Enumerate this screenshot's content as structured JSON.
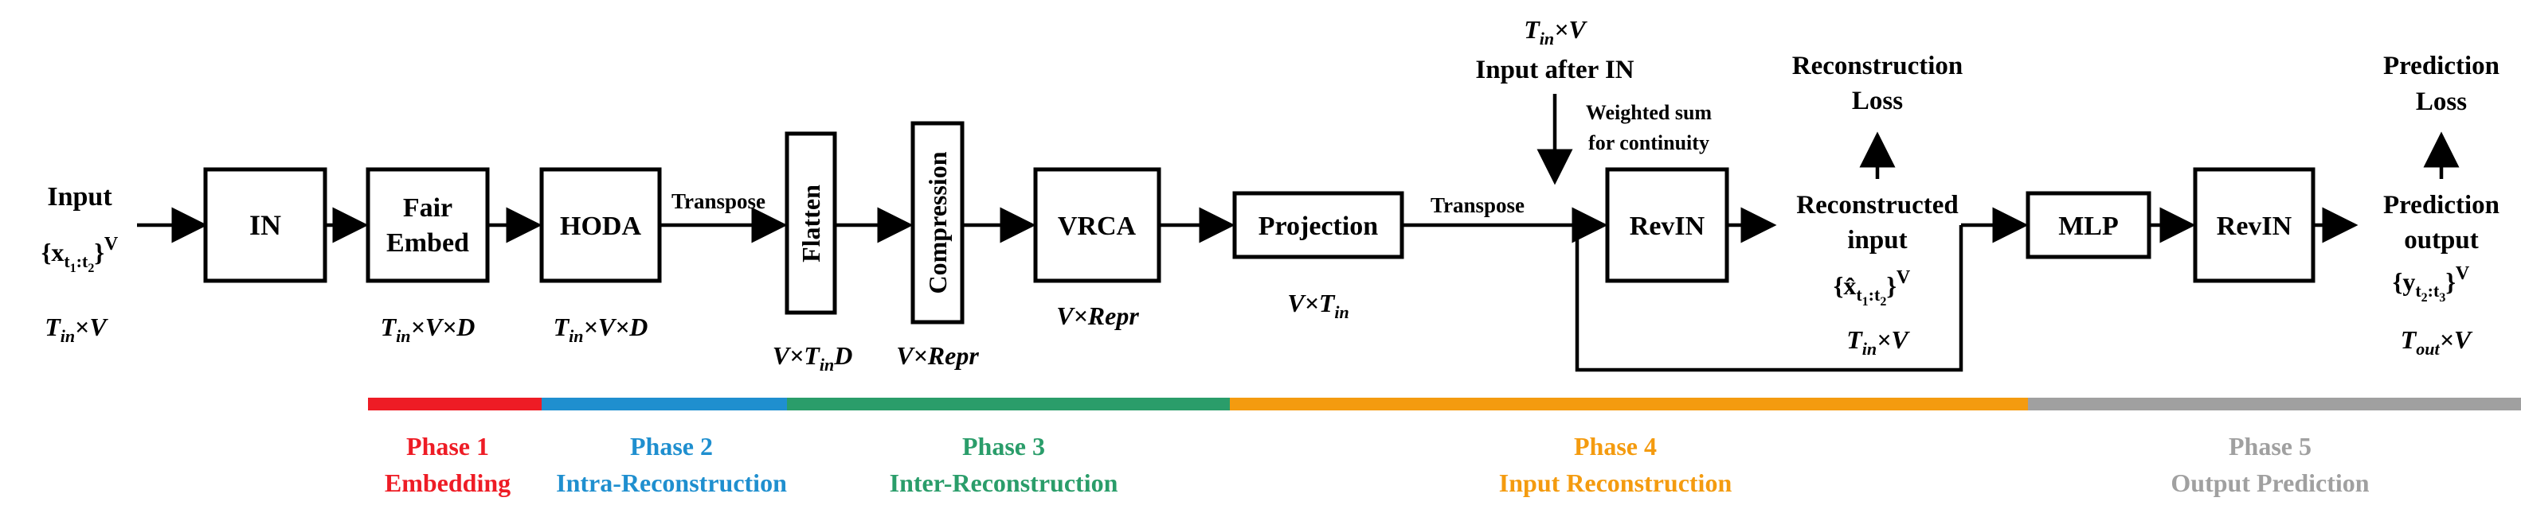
{
  "input": {
    "label": "Input",
    "formula": "{x",
    "formula_sub": "t",
    "formula_sub2": "1",
    "formula_colon": ":",
    "formula_sub3": "t",
    "formula_sub4": "2",
    "formula_close": "}",
    "formula_sup": "V",
    "dims": {
      "a": "T",
      "a_sub": "in",
      "times": "×",
      "b": "V"
    }
  },
  "blocks": {
    "in": "IN",
    "fair_embed_1": "Fair",
    "fair_embed_2": "Embed",
    "hoda": "HODA",
    "flatten": "Flatten",
    "compression": "Compression",
    "vrca": "VRCA",
    "projection": "Projection",
    "revin_1": "RevIN",
    "mlp": "MLP",
    "revin_2": "RevIN"
  },
  "edge_labels": {
    "transpose_1": "Transpose",
    "transpose_2": "Transpose",
    "weighted_1": "Weighted sum",
    "weighted_2": "for continuity"
  },
  "dims": {
    "fair_embed": {
      "a": "T",
      "a_sub": "in",
      "rest": "×V×D"
    },
    "hoda": {
      "a": "T",
      "a_sub": "in",
      "rest": "×V×D"
    },
    "flatten": {
      "a": "V×T",
      "a_sub": "in",
      "rest": "D"
    },
    "compression": "V×Repr",
    "vrca": "V×Repr",
    "projection": {
      "a": "V×T",
      "a_sub": "in"
    },
    "input_after_in_dims": {
      "a": "T",
      "a_sub": "in",
      "rest": "×V"
    },
    "reconstructed_dims": {
      "a": "T",
      "a_sub": "in",
      "rest": "×V"
    },
    "output_dims": {
      "a": "T",
      "a_sub": "out",
      "rest": "×V"
    }
  },
  "labels": {
    "input_after_in": "Input after IN",
    "reconstruction_loss_1": "Reconstruction",
    "reconstruction_loss_2": "Loss",
    "reconstructed_input_1": "Reconstructed",
    "reconstructed_input_2": "input",
    "reconstructed_formula": {
      "open": "{x̂",
      "s1": "t",
      "s2": "1",
      "c": ":",
      "s3": "t",
      "s4": "2",
      "close": "}",
      "sup": "V"
    },
    "prediction_loss_1": "Prediction",
    "prediction_loss_2": "Loss",
    "prediction_output_1": "Prediction",
    "prediction_output_2": "output",
    "prediction_formula": {
      "open": "{y",
      "s1": "t",
      "s2": "2",
      "c": ":",
      "s3": "t",
      "s4": "3",
      "close": "}",
      "sup": "V"
    }
  },
  "phases": [
    {
      "title": "Phase 1",
      "name": "Embedding",
      "color": "#ee1c25"
    },
    {
      "title": "Phase 2",
      "name": "Intra-Reconstruction",
      "color": "#1f8fcf"
    },
    {
      "title": "Phase 3",
      "name": "Inter-Reconstruction",
      "color": "#2a9d6a"
    },
    {
      "title": "Phase 4",
      "name": "Input Reconstruction",
      "color": "#f49b0f"
    },
    {
      "title": "Phase 5",
      "name": "Output Prediction",
      "color": "#a0a0a0"
    }
  ]
}
